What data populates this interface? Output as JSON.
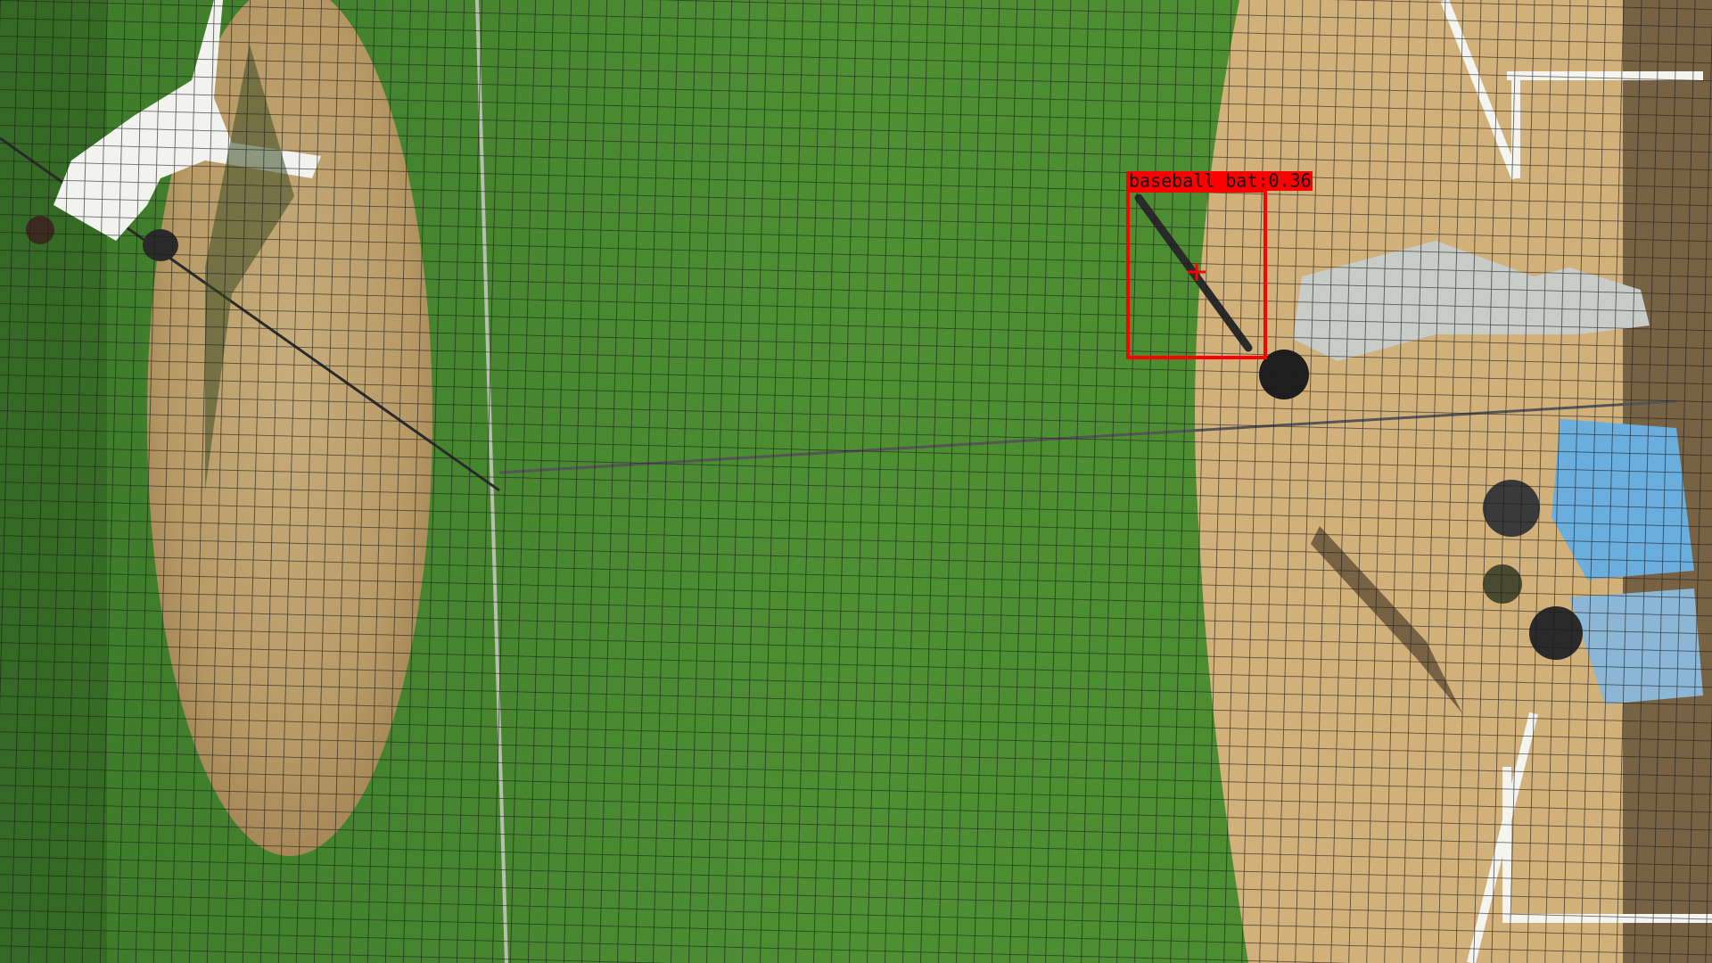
{
  "detections": [
    {
      "label": "baseball bat:0.36"
    }
  ]
}
